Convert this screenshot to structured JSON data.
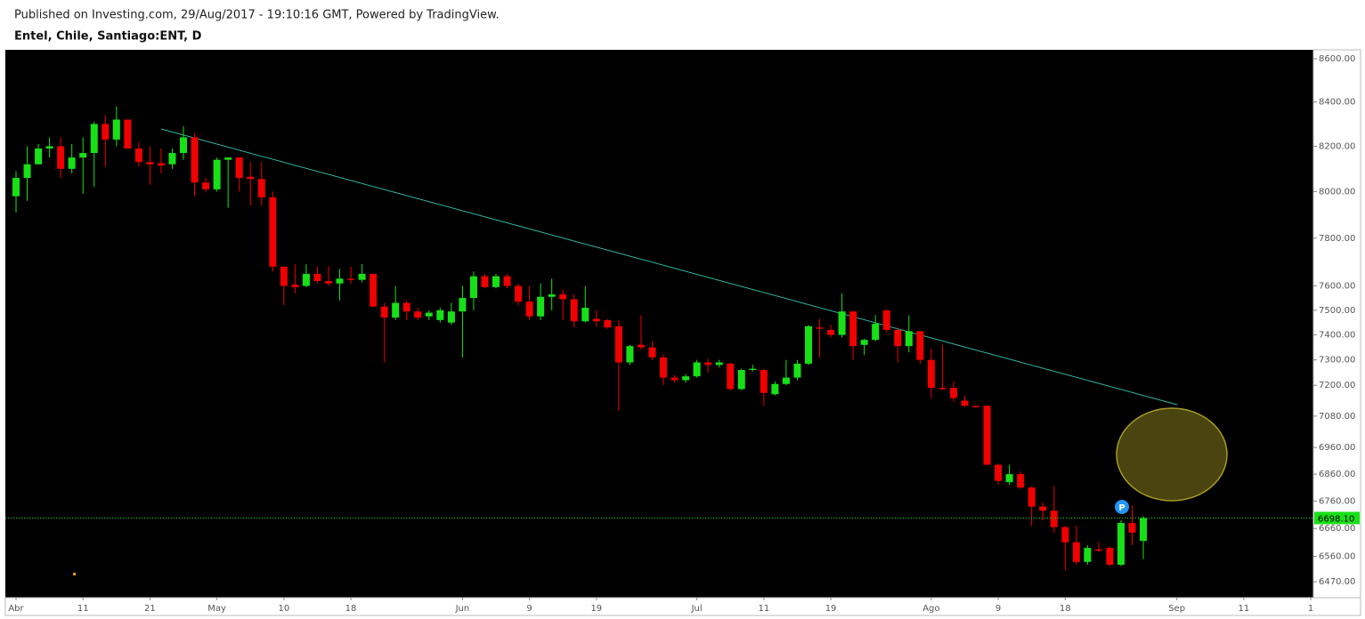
{
  "chart_data": {
    "type": "candlestick",
    "subtitle": "Published on Investing.com, 29/Aug/2017 - 19:10:16 GMT, Powered by TradingView.",
    "title": "Entel, Chile, Santiago:ENT, D",
    "log_scale": true,
    "up_color": "#18e018",
    "down_color": "#f00000",
    "categories": [
      "Abr",
      null,
      null,
      null,
      null,
      null,
      "11",
      null,
      null,
      null,
      null,
      null,
      "21",
      null,
      null,
      null,
      null,
      null,
      "May",
      null,
      null,
      null,
      null,
      null,
      "10",
      null,
      null,
      null,
      null,
      null,
      "18",
      null,
      null,
      null,
      null,
      null,
      null,
      null,
      null,
      null,
      "Jun",
      null,
      null,
      null,
      null,
      null,
      "9",
      null,
      null,
      null,
      null,
      null,
      "19",
      null,
      null,
      null,
      null,
      null,
      null,
      null,
      null,
      "Jul",
      null,
      null,
      null,
      null,
      null,
      "11",
      null,
      null,
      null,
      null,
      null,
      "19",
      null,
      null,
      null,
      null,
      null,
      null,
      null,
      null,
      "Ago",
      null,
      null,
      null,
      null,
      null,
      "9",
      null,
      null,
      null,
      null,
      null,
      "18",
      null,
      null,
      null,
      null,
      null,
      null,
      null,
      null,
      null,
      "Sep",
      null,
      null,
      null,
      null,
      null,
      "11",
      null,
      null,
      null,
      null,
      null,
      "1"
    ],
    "open": [
      7980,
      8060,
      8120,
      8190,
      8200,
      8100,
      8150,
      8170,
      8300,
      8230,
      8320,
      8190,
      8130,
      8125,
      8120,
      8170,
      8240,
      8040,
      8010,
      8140,
      8150,
      8065,
      8055,
      7975,
      7680,
      7605,
      7600,
      7650,
      7620,
      7610,
      7630,
      7625,
      7650,
      7515,
      7470,
      7530,
      7495,
      7475,
      7460,
      7450,
      7495,
      7550,
      7640,
      7595,
      7640,
      7600,
      7535,
      7475,
      7555,
      7565,
      7545,
      7455,
      7465,
      7460,
      7435,
      7290,
      7360,
      7350,
      7310,
      7230,
      7220,
      7235,
      7290,
      7280,
      7285,
      7185,
      7260,
      7260,
      7165,
      7205,
      7230,
      7285,
      7430,
      7420,
      7400,
      7495,
      7360,
      7380,
      7500,
      7420,
      7355,
      7415,
      7300,
      7190,
      7190,
      7140,
      7120,
      7120,
      6895,
      6830,
      6860,
      6810,
      6740,
      6725,
      6665,
      6610,
      6540,
      6585,
      6590,
      6530,
      6680,
      6615,
      null,
      null,
      null,
      null,
      null,
      null,
      null,
      null,
      null,
      null,
      null,
      null,
      null,
      null,
      null
    ],
    "high": [
      8090,
      8200,
      8210,
      8240,
      8240,
      8210,
      8240,
      8310,
      8340,
      8380,
      8320,
      8220,
      8200,
      8190,
      8190,
      8290,
      8260,
      8060,
      8150,
      8150,
      8150,
      8130,
      8130,
      8000,
      7680,
      7690,
      7690,
      7680,
      7680,
      7670,
      7680,
      7690,
      7650,
      7530,
      7600,
      7540,
      7510,
      7500,
      7510,
      7530,
      7600,
      7660,
      7650,
      7650,
      7650,
      7610,
      7600,
      7610,
      7630,
      7585,
      7565,
      7600,
      7500,
      7465,
      7460,
      7360,
      7480,
      7375,
      7320,
      7240,
      7245,
      7300,
      7305,
      7300,
      7290,
      7265,
      7280,
      7265,
      7215,
      7300,
      7300,
      7440,
      7465,
      7440,
      7570,
      7495,
      7385,
      7480,
      7500,
      7430,
      7480,
      7415,
      7345,
      7360,
      7215,
      7160,
      7120,
      7120,
      6900,
      6895,
      6870,
      6815,
      6755,
      6815,
      6670,
      6670,
      6600,
      6610,
      6595,
      6690,
      6745,
      6705,
      null,
      null,
      null,
      null,
      null,
      null,
      null,
      null,
      null,
      null,
      null,
      null,
      null,
      null,
      null
    ],
    "low": [
      7910,
      7960,
      8120,
      8150,
      8060,
      8080,
      7990,
      8020,
      8110,
      8200,
      8190,
      8110,
      8030,
      8080,
      8100,
      8140,
      7980,
      8000,
      8000,
      7930,
      8000,
      7940,
      7940,
      7660,
      7520,
      7570,
      7595,
      7610,
      7600,
      7540,
      7610,
      7615,
      7515,
      7290,
      7460,
      7460,
      7460,
      7460,
      7450,
      7440,
      7310,
      7500,
      7590,
      7590,
      7590,
      7520,
      7460,
      7460,
      7500,
      7460,
      7430,
      7450,
      7435,
      7425,
      7100,
      7280,
      7340,
      7300,
      7200,
      7210,
      7210,
      7230,
      7250,
      7270,
      7180,
      7180,
      7255,
      7120,
      7160,
      7200,
      7220,
      7280,
      7310,
      7390,
      7390,
      7300,
      7320,
      7375,
      7410,
      7290,
      7330,
      7285,
      7150,
      7180,
      7135,
      7115,
      7112,
      6895,
      6820,
      6820,
      6805,
      6670,
      6690,
      6645,
      6510,
      6530,
      6530,
      6575,
      6525,
      6525,
      6600,
      6550,
      null,
      null,
      null,
      null,
      null,
      null,
      null,
      null,
      null,
      null,
      null,
      null,
      null,
      null,
      null
    ],
    "close": [
      8060,
      8120,
      8190,
      8200,
      8100,
      8150,
      8170,
      8300,
      8230,
      8320,
      8190,
      8130,
      8120,
      8115,
      8170,
      8240,
      8040,
      8010,
      8140,
      8150,
      8060,
      8055,
      7975,
      7680,
      7600,
      7595,
      7650,
      7620,
      7610,
      7630,
      7625,
      7650,
      7515,
      7470,
      7530,
      7495,
      7470,
      7490,
      7500,
      7495,
      7550,
      7640,
      7595,
      7640,
      7600,
      7535,
      7475,
      7555,
      7565,
      7545,
      7455,
      7510,
      7455,
      7430,
      7290,
      7355,
      7350,
      7310,
      7230,
      7220,
      7235,
      7290,
      7280,
      7290,
      7185,
      7260,
      7265,
      7170,
      7205,
      7230,
      7285,
      7435,
      7425,
      7400,
      7495,
      7355,
      7380,
      7445,
      7420,
      7355,
      7415,
      7300,
      7190,
      7185,
      7150,
      7120,
      7115,
      6895,
      6835,
      6860,
      6810,
      6740,
      6725,
      6665,
      6610,
      6540,
      6590,
      6580,
      6530,
      6680,
      6645,
      6698.1,
      null,
      null,
      null,
      null,
      null,
      null,
      null,
      null,
      null,
      null,
      null,
      null,
      null,
      null,
      null
    ],
    "ylim": [
      6414,
      8642
    ],
    "yticks": [
      {
        "value": 8600,
        "label": "8600.00"
      },
      {
        "value": 8400,
        "label": "8400.00"
      },
      {
        "value": 8200,
        "label": "8200.00"
      },
      {
        "value": 8000,
        "label": "8000.00"
      },
      {
        "value": 7800,
        "label": "7800.00"
      },
      {
        "value": 7600,
        "label": "7600.00"
      },
      {
        "value": 7500,
        "label": "7500.00"
      },
      {
        "value": 7400,
        "label": "7400.00"
      },
      {
        "value": 7300,
        "label": "7300.00"
      },
      {
        "value": 7200,
        "label": "7200.00"
      },
      {
        "value": 7080,
        "label": "7080.00"
      },
      {
        "value": 6960,
        "label": "6960.00"
      },
      {
        "value": 6860,
        "label": "6860.00"
      },
      {
        "value": 6760,
        "label": "6760.00"
      },
      {
        "value": 6660,
        "label": "6660.00"
      },
      {
        "value": 6560,
        "label": "6560.00"
      },
      {
        "value": 6470,
        "label": "6470.00"
      }
    ],
    "last_price": {
      "value": 6698.1,
      "label": "6698.10"
    },
    "last_price_color": "#18e018",
    "marker_label": "P"
  }
}
